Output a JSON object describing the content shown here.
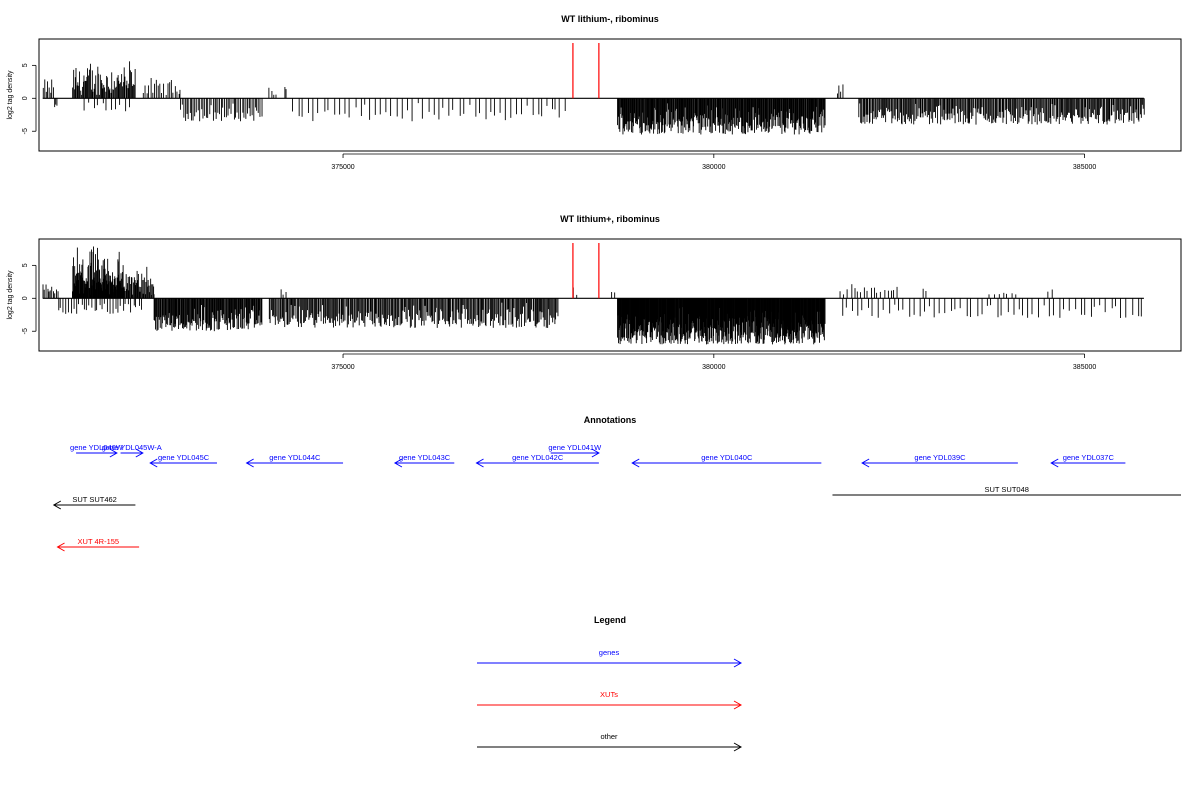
{
  "colors": {
    "signal": "#000000",
    "marker": "#ff0000",
    "gene": "#0000ff",
    "xut": "#ff0000",
    "other": "#000000",
    "frame": "#000000"
  },
  "chart_data": [
    {
      "type": "bar",
      "title": "WT lithium-, ribominus",
      "ylabel": "log2 tag density",
      "xlim": [
        370900,
        386300
      ],
      "ylim": [
        -8,
        9
      ],
      "xticks": [
        375000,
        380000,
        385000
      ],
      "yticks": [
        -5,
        0,
        5
      ],
      "markers": [
        378100,
        378450
      ],
      "baseline_range": [
        370950,
        385800
      ],
      "segments": [
        {
          "from": 370950,
          "to": 371100,
          "min": 0.5,
          "max": 3.5,
          "step": 20
        },
        {
          "from": 371100,
          "to": 371150,
          "min": -1.5,
          "max": -0.5,
          "step": 20
        },
        {
          "from": 371350,
          "to": 372200,
          "min": 0.5,
          "max": 6.5,
          "step": 12
        },
        {
          "from": 371500,
          "to": 372100,
          "min": -2,
          "max": -0.3,
          "step": 60
        },
        {
          "from": 372300,
          "to": 372800,
          "min": 0.5,
          "max": 3.5,
          "step": 25
        },
        {
          "from": 372800,
          "to": 373900,
          "min": -3.5,
          "max": -0.5,
          "step": 22
        },
        {
          "from": 374000,
          "to": 374100,
          "min": 0.5,
          "max": 2.5,
          "step": 30
        },
        {
          "from": 374200,
          "to": 374250,
          "min": 1,
          "max": 2,
          "step": 30
        },
        {
          "from": 374300,
          "to": 377500,
          "min": -3.5,
          "max": -0.5,
          "step": 70
        },
        {
          "from": 377550,
          "to": 378000,
          "min": -3,
          "max": -0.5,
          "step": 60
        },
        {
          "from": 378700,
          "to": 381500,
          "min": -5.5,
          "max": -0.5,
          "step": 9
        },
        {
          "from": 381650,
          "to": 381750,
          "min": 0.5,
          "max": 2.5,
          "step": 30
        },
        {
          "from": 381950,
          "to": 385800,
          "min": -4,
          "max": -0.5,
          "step": 14
        }
      ]
    },
    {
      "type": "bar",
      "title": "WT lithium+, ribominus",
      "ylabel": "log2 tag density",
      "xlim": [
        370900,
        386300
      ],
      "ylim": [
        -8,
        9
      ],
      "xticks": [
        375000,
        380000,
        385000
      ],
      "yticks": [
        -5,
        0,
        5
      ],
      "markers": [
        378100,
        378450
      ],
      "baseline_range": [
        370950,
        385800
      ],
      "segments": [
        {
          "from": 370950,
          "to": 371150,
          "min": 0.5,
          "max": 2.5,
          "step": 20
        },
        {
          "from": 371150,
          "to": 372300,
          "min": -2.5,
          "max": -0.5,
          "step": 35
        },
        {
          "from": 371350,
          "to": 372050,
          "min": 0.5,
          "max": 8.5,
          "step": 6
        },
        {
          "from": 372050,
          "to": 372450,
          "min": 0.5,
          "max": 5.5,
          "step": 10
        },
        {
          "from": 372450,
          "to": 373900,
          "min": -5,
          "max": -0.5,
          "step": 10
        },
        {
          "from": 374150,
          "to": 374250,
          "min": 0.5,
          "max": 2,
          "step": 40
        },
        {
          "from": 374000,
          "to": 377900,
          "min": -4.5,
          "max": -0.5,
          "step": 14
        },
        {
          "from": 378100,
          "to": 378150,
          "min": 0.5,
          "max": 2,
          "step": 40
        },
        {
          "from": 378600,
          "to": 378650,
          "min": 0.5,
          "max": 3,
          "step": 40
        },
        {
          "from": 378700,
          "to": 381500,
          "min": -7,
          "max": -1,
          "step": 6
        },
        {
          "from": 381700,
          "to": 382500,
          "min": 0.5,
          "max": 2.5,
          "step": 45
        },
        {
          "from": 381700,
          "to": 385800,
          "min": -3,
          "max": -0.5,
          "step": 70
        },
        {
          "from": 382800,
          "to": 382850,
          "min": 1,
          "max": 3.5,
          "step": 40
        },
        {
          "from": 383700,
          "to": 384100,
          "min": 0.5,
          "max": 1.5,
          "step": 60
        },
        {
          "from": 384500,
          "to": 384550,
          "min": 1,
          "max": 2,
          "step": 40
        }
      ]
    }
  ],
  "annotations": {
    "title": "Annotations",
    "features": [
      {
        "label": "gene YDL046W",
        "kind": "gene",
        "strand": "+",
        "start": 371400,
        "end": 371950,
        "row": 0
      },
      {
        "label": "gene YDL045W-A",
        "kind": "gene",
        "strand": "+",
        "start": 372000,
        "end": 372300,
        "row": 0
      },
      {
        "label": "gene YDL041W",
        "kind": "gene",
        "strand": "+",
        "start": 377800,
        "end": 378450,
        "row": 0
      },
      {
        "label": "gene YDL045C",
        "kind": "gene",
        "strand": "-",
        "start": 372400,
        "end": 373300,
        "row": 1
      },
      {
        "label": "gene YDL044C",
        "kind": "gene",
        "strand": "-",
        "start": 373700,
        "end": 375000,
        "row": 1
      },
      {
        "label": "gene YDL043C",
        "kind": "gene",
        "strand": "-",
        "start": 375700,
        "end": 376500,
        "row": 1
      },
      {
        "label": "gene YDL042C",
        "kind": "gene",
        "strand": "-",
        "start": 376800,
        "end": 378450,
        "row": 1
      },
      {
        "label": "gene YDL040C",
        "kind": "gene",
        "strand": "-",
        "start": 378900,
        "end": 381450,
        "row": 1
      },
      {
        "label": "gene YDL039C",
        "kind": "gene",
        "strand": "-",
        "start": 382000,
        "end": 384100,
        "row": 1
      },
      {
        "label": "gene YDL037C",
        "kind": "gene",
        "strand": "-",
        "start": 384550,
        "end": 385550,
        "row": 1
      },
      {
        "label": "SUT SUT048",
        "kind": "other",
        "strand": ".",
        "start": 381600,
        "end": 386300,
        "row": 2
      },
      {
        "label": "SUT SUT462",
        "kind": "other",
        "strand": "-",
        "start": 371100,
        "end": 372200,
        "row": 3
      },
      {
        "label": "XUT 4R-155",
        "kind": "xut",
        "strand": "-",
        "start": 371150,
        "end": 372250,
        "row": 4
      }
    ]
  },
  "legend": {
    "title": "Legend",
    "items": [
      {
        "label": "genes",
        "kind": "gene"
      },
      {
        "label": "XUTs",
        "kind": "xut"
      },
      {
        "label": "other",
        "kind": "other"
      }
    ]
  }
}
